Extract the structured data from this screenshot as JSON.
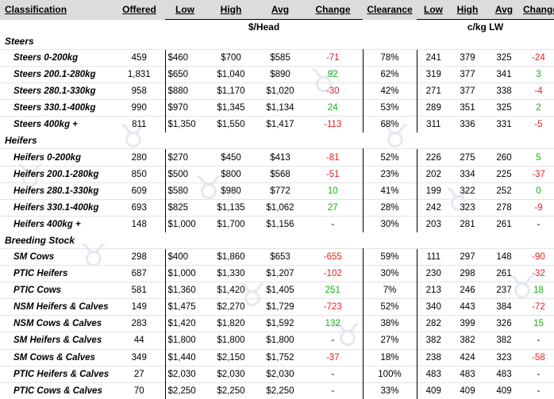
{
  "headers": [
    "Classification",
    "Offered",
    "Low",
    "High",
    "Avg",
    "Change",
    "Clearance",
    "Low",
    "High",
    "Avg",
    "Change"
  ],
  "units": {
    "head": "$/Head",
    "lw": "c/kg LW"
  },
  "sections": [
    {
      "name": "Steers",
      "rows": [
        {
          "cls": "Steers 0-200kg",
          "offered": "459",
          "low": "$460",
          "high": "$700",
          "avg": "$585",
          "change": "-71",
          "change_sign": "neg",
          "clearance": "78%",
          "ckg_low": "241",
          "ckg_high": "379",
          "ckg_avg": "325",
          "ckg_change": "-24",
          "ckg_change_sign": "neg"
        },
        {
          "cls": "Steers 200.1-280kg",
          "offered": "1,831",
          "low": "$650",
          "high": "$1,040",
          "avg": "$890",
          "change": "92",
          "change_sign": "pos",
          "clearance": "62%",
          "ckg_low": "319",
          "ckg_high": "377",
          "ckg_avg": "341",
          "ckg_change": "3",
          "ckg_change_sign": "pos"
        },
        {
          "cls": "Steers 280.1-330kg",
          "offered": "958",
          "low": "$880",
          "high": "$1,170",
          "avg": "$1,020",
          "change": "-30",
          "change_sign": "neg",
          "clearance": "42%",
          "ckg_low": "271",
          "ckg_high": "377",
          "ckg_avg": "338",
          "ckg_change": "-4",
          "ckg_change_sign": "neg"
        },
        {
          "cls": "Steers 330.1-400kg",
          "offered": "990",
          "low": "$970",
          "high": "$1,345",
          "avg": "$1,134",
          "change": "24",
          "change_sign": "pos",
          "clearance": "53%",
          "ckg_low": "289",
          "ckg_high": "351",
          "ckg_avg": "325",
          "ckg_change": "2",
          "ckg_change_sign": "pos"
        },
        {
          "cls": "Steers 400kg +",
          "offered": "811",
          "low": "$1,350",
          "high": "$1,550",
          "avg": "$1,417",
          "change": "-113",
          "change_sign": "neg",
          "clearance": "68%",
          "ckg_low": "311",
          "ckg_high": "336",
          "ckg_avg": "331",
          "ckg_change": "-5",
          "ckg_change_sign": "neg"
        }
      ]
    },
    {
      "name": "Heifers",
      "rows": [
        {
          "cls": "Heifers 0-200kg",
          "offered": "280",
          "low": "$270",
          "high": "$450",
          "avg": "$413",
          "change": "-81",
          "change_sign": "neg",
          "clearance": "52%",
          "ckg_low": "226",
          "ckg_high": "275",
          "ckg_avg": "260",
          "ckg_change": "5",
          "ckg_change_sign": "pos"
        },
        {
          "cls": "Heifers 200.1-280kg",
          "offered": "850",
          "low": "$500",
          "high": "$800",
          "avg": "$568",
          "change": "-51",
          "change_sign": "neg",
          "clearance": "23%",
          "ckg_low": "202",
          "ckg_high": "334",
          "ckg_avg": "225",
          "ckg_change": "-37",
          "ckg_change_sign": "neg"
        },
        {
          "cls": "Heifers 280.1-330kg",
          "offered": "609",
          "low": "$580",
          "high": "$980",
          "avg": "$772",
          "change": "10",
          "change_sign": "pos",
          "clearance": "41%",
          "ckg_low": "199",
          "ckg_high": "322",
          "ckg_avg": "252",
          "ckg_change": "0",
          "ckg_change_sign": "pos"
        },
        {
          "cls": "Heifers 330.1-400kg",
          "offered": "693",
          "low": "$825",
          "high": "$1,135",
          "avg": "$1,062",
          "change": "27",
          "change_sign": "pos",
          "clearance": "28%",
          "ckg_low": "242",
          "ckg_high": "323",
          "ckg_avg": "278",
          "ckg_change": "-9",
          "ckg_change_sign": "neg"
        },
        {
          "cls": "Heifers 400kg +",
          "offered": "148",
          "low": "$1,000",
          "high": "$1,700",
          "avg": "$1,156",
          "change": "-",
          "change_sign": "dash",
          "clearance": "30%",
          "ckg_low": "203",
          "ckg_high": "281",
          "ckg_avg": "261",
          "ckg_change": "-",
          "ckg_change_sign": "dash"
        }
      ]
    },
    {
      "name": "Breeding Stock",
      "rows": [
        {
          "cls": "SM Cows",
          "offered": "298",
          "low": "$400",
          "high": "$1,860",
          "avg": "$653",
          "change": "-655",
          "change_sign": "neg",
          "clearance": "59%",
          "ckg_low": "111",
          "ckg_high": "297",
          "ckg_avg": "148",
          "ckg_change": "-90",
          "ckg_change_sign": "neg"
        },
        {
          "cls": "PTIC Heifers",
          "offered": "687",
          "low": "$1,000",
          "high": "$1,330",
          "avg": "$1,207",
          "change": "-102",
          "change_sign": "neg",
          "clearance": "30%",
          "ckg_low": "230",
          "ckg_high": "298",
          "ckg_avg": "261",
          "ckg_change": "-32",
          "ckg_change_sign": "neg"
        },
        {
          "cls": "PTIC Cows",
          "offered": "581",
          "low": "$1,360",
          "high": "$1,420",
          "avg": "$1,405",
          "change": "251",
          "change_sign": "pos",
          "clearance": "7%",
          "ckg_low": "213",
          "ckg_high": "246",
          "ckg_avg": "237",
          "ckg_change": "18",
          "ckg_change_sign": "pos"
        },
        {
          "cls": "NSM Heifers & Calves",
          "offered": "149",
          "low": "$1,475",
          "high": "$2,270",
          "avg": "$1,729",
          "change": "-723",
          "change_sign": "neg",
          "clearance": "52%",
          "ckg_low": "340",
          "ckg_high": "443",
          "ckg_avg": "384",
          "ckg_change": "-72",
          "ckg_change_sign": "neg"
        },
        {
          "cls": "NSM Cows & Calves",
          "offered": "283",
          "low": "$1,420",
          "high": "$1,820",
          "avg": "$1,592",
          "change": "132",
          "change_sign": "pos",
          "clearance": "38%",
          "ckg_low": "282",
          "ckg_high": "399",
          "ckg_avg": "326",
          "ckg_change": "15",
          "ckg_change_sign": "pos"
        },
        {
          "cls": "SM Heifers & Calves",
          "offered": "44",
          "low": "$1,800",
          "high": "$1,800",
          "avg": "$1,800",
          "change": "-",
          "change_sign": "dash",
          "clearance": "27%",
          "ckg_low": "382",
          "ckg_high": "382",
          "ckg_avg": "382",
          "ckg_change": "-",
          "ckg_change_sign": "dash"
        },
        {
          "cls": "SM Cows & Calves",
          "offered": "349",
          "low": "$1,440",
          "high": "$2,150",
          "avg": "$1,752",
          "change": "-37",
          "change_sign": "neg",
          "clearance": "18%",
          "ckg_low": "238",
          "ckg_high": "424",
          "ckg_avg": "323",
          "ckg_change": "-58",
          "ckg_change_sign": "neg"
        },
        {
          "cls": "PTIC Heifers & Calves",
          "offered": "27",
          "low": "$2,030",
          "high": "$2,030",
          "avg": "$2,030",
          "change": "-",
          "change_sign": "dash",
          "clearance": "100%",
          "ckg_low": "483",
          "ckg_high": "483",
          "ckg_avg": "483",
          "ckg_change": "-",
          "ckg_change_sign": "dash"
        },
        {
          "cls": "PTIC Cows & Calves",
          "offered": "70",
          "low": "$2,250",
          "high": "$2,250",
          "avg": "$2,250",
          "change": "-",
          "change_sign": "dash",
          "clearance": "33%",
          "ckg_low": "409",
          "ckg_high": "409",
          "ckg_avg": "409",
          "ckg_change": "-",
          "ckg_change_sign": "dash"
        }
      ]
    }
  ]
}
